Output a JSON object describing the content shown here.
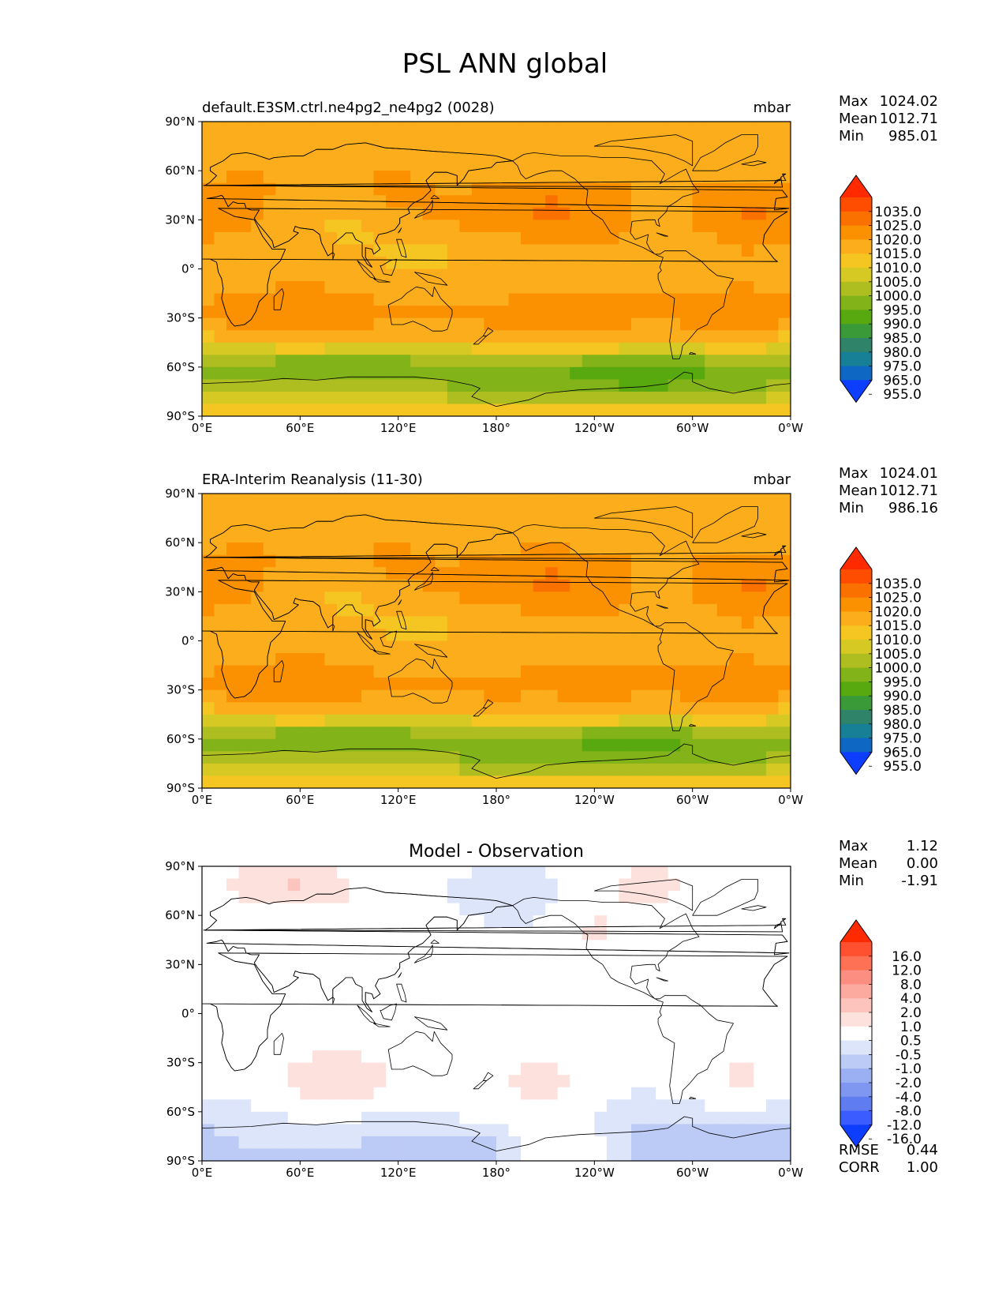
{
  "figure": {
    "title": "PSL ANN global"
  },
  "colors": {
    "land": "#000000",
    "frame": "#000000",
    "main_levels": [
      {
        "min": 1035,
        "color": "#ff2a00"
      },
      {
        "min": 1025,
        "color": "#ff4d00"
      },
      {
        "min": 1020,
        "color": "#fb7100"
      },
      {
        "min": 1015,
        "color": "#fb9000"
      },
      {
        "min": 1010,
        "color": "#fbad1c"
      },
      {
        "min": 1005,
        "color": "#f5c622"
      },
      {
        "min": 1000,
        "color": "#d7c924"
      },
      {
        "min": 995,
        "color": "#aebe20"
      },
      {
        "min": 990,
        "color": "#82b318"
      },
      {
        "min": 985,
        "color": "#58a80f"
      },
      {
        "min": 980,
        "color": "#3a9a37"
      },
      {
        "min": 975,
        "color": "#2e8368"
      },
      {
        "min": 965,
        "color": "#177f96"
      },
      {
        "min": 955,
        "color": "#0f67c4"
      },
      {
        "min": -9999,
        "color": "#0d3dff"
      }
    ],
    "diff_levels": [
      {
        "min": 16,
        "color": "#ff2a00"
      },
      {
        "min": 12,
        "color": "#ff5030"
      },
      {
        "min": 8,
        "color": "#ff7155"
      },
      {
        "min": 4,
        "color": "#fb8e80"
      },
      {
        "min": 2,
        "color": "#fcaaa0"
      },
      {
        "min": 1,
        "color": "#fcc4bc"
      },
      {
        "min": 0.5,
        "color": "#fde1dc"
      },
      {
        "min": -0.5,
        "color": "#ffffff"
      },
      {
        "min": -1,
        "color": "#dde5fa"
      },
      {
        "min": -2,
        "color": "#bccbf5"
      },
      {
        "min": -4,
        "color": "#9ab0f2"
      },
      {
        "min": -8,
        "color": "#7f97f0"
      },
      {
        "min": -12,
        "color": "#5f7cf0"
      },
      {
        "min": -16,
        "color": "#3b5cff"
      },
      {
        "min": -9999,
        "color": "#0d3dff"
      }
    ]
  },
  "chart_data": [
    {
      "type": "heatmap",
      "title_left": "default.E3SM.ctrl.ne4pg2_ne4pg2 (0028)",
      "title_right": "mbar",
      "units": "mbar",
      "x_ticks": [
        "0°E",
        "60°E",
        "120°E",
        "180°",
        "120°W",
        "60°W",
        "0°W"
      ],
      "y_ticks": [
        "90°N",
        "60°N",
        "30°N",
        "0°",
        "30°S",
        "60°S",
        "90°S"
      ],
      "xlim": [
        0,
        360
      ],
      "ylim": [
        -90,
        90
      ],
      "stats": [
        {
          "label": "Max",
          "value": "1024.02"
        },
        {
          "label": "Mean",
          "value": "1012.71"
        },
        {
          "label": "Min",
          "value": "985.01"
        }
      ],
      "colorbar_labels": [
        "1035.0",
        "1025.0",
        "1020.0",
        "1015.0",
        "1010.0",
        "1005.0",
        "1000.0",
        "995.0",
        "990.0",
        "985.0",
        "980.0",
        "975.0",
        "965.0",
        "955.0"
      ],
      "field": {
        "lons": [
          0,
          30,
          60,
          90,
          120,
          150,
          180,
          210,
          240,
          270,
          300,
          330,
          360
        ],
        "lats": [
          90,
          75,
          60,
          45,
          30,
          15,
          0,
          -15,
          -30,
          -45,
          -60,
          -75,
          -90
        ],
        "values": [
          [
            1013,
            1013,
            1013,
            1013,
            1013,
            1013,
            1013,
            1013,
            1013,
            1013,
            1013,
            1013,
            1013
          ],
          [
            1011,
            1012,
            1014,
            1014,
            1013,
            1013,
            1013,
            1013,
            1013,
            1013,
            1013,
            1009,
            1011
          ],
          [
            1014,
            1015,
            1013,
            1015,
            1015,
            1014,
            1013,
            1013,
            1014,
            1014,
            1014,
            1012,
            1014
          ],
          [
            1017,
            1016,
            1014,
            1014,
            1016,
            1015,
            1016,
            1020,
            1018,
            1014,
            1015,
            1019,
            1017
          ],
          [
            1020,
            1016,
            1010,
            1009,
            1014,
            1016,
            1018,
            1021,
            1020,
            1014,
            1015,
            1021,
            1020
          ],
          [
            1014,
            1012,
            1012,
            1010,
            1009,
            1010,
            1013,
            1014,
            1015,
            1013,
            1013,
            1016,
            1014
          ],
          [
            1012,
            1011,
            1012,
            1012,
            1010,
            1010,
            1012,
            1012,
            1012,
            1012,
            1012,
            1013,
            1012
          ],
          [
            1014,
            1015,
            1017,
            1015,
            1014,
            1013,
            1014,
            1015,
            1016,
            1015,
            1015,
            1016,
            1014
          ],
          [
            1017,
            1018,
            1020,
            1018,
            1016,
            1016,
            1017,
            1017,
            1019,
            1016,
            1017,
            1020,
            1017
          ],
          [
            1007,
            1009,
            1011,
            1010,
            1009,
            1009,
            1010,
            1011,
            1011,
            1010,
            1010,
            1011,
            1007
          ],
          [
            994,
            991,
            989,
            988,
            990,
            991,
            993,
            991,
            989,
            988,
            989,
            992,
            994
          ],
          [
            998,
            999,
            1000,
            1000,
            999,
            996,
            992,
            990,
            991,
            990,
            991,
            994,
            998
          ],
          [
            1013,
            1013,
            1013,
            1013,
            1013,
            1013,
            1013,
            1013,
            1013,
            1013,
            1013,
            1013,
            1013
          ]
        ]
      }
    },
    {
      "type": "heatmap",
      "title_left": "ERA-Interim Reanalysis (11-30)",
      "title_right": "mbar",
      "units": "mbar",
      "x_ticks": [
        "0°E",
        "60°E",
        "120°E",
        "180°",
        "120°W",
        "60°W",
        "0°W"
      ],
      "y_ticks": [
        "90°N",
        "60°N",
        "30°N",
        "0°",
        "30°S",
        "60°S",
        "90°S"
      ],
      "xlim": [
        0,
        360
      ],
      "ylim": [
        -90,
        90
      ],
      "stats": [
        {
          "label": "Max",
          "value": "1024.01"
        },
        {
          "label": "Mean",
          "value": "1012.71"
        },
        {
          "label": "Min",
          "value": "986.16"
        }
      ],
      "colorbar_labels": [
        "1035.0",
        "1025.0",
        "1020.0",
        "1015.0",
        "1010.0",
        "1005.0",
        "1000.0",
        "995.0",
        "990.0",
        "985.0",
        "980.0",
        "975.0",
        "965.0",
        "955.0"
      ],
      "field": {
        "lons": [
          0,
          30,
          60,
          90,
          120,
          150,
          180,
          210,
          240,
          270,
          300,
          330,
          360
        ],
        "lats": [
          90,
          75,
          60,
          45,
          30,
          15,
          0,
          -15,
          -30,
          -45,
          -60,
          -75,
          -90
        ],
        "values": [
          [
            1013,
            1013,
            1013,
            1013,
            1013,
            1013,
            1013,
            1013,
            1013,
            1013,
            1013,
            1013,
            1013
          ],
          [
            1011,
            1012,
            1013,
            1014,
            1013,
            1013,
            1014,
            1014,
            1013,
            1013,
            1012,
            1009,
            1011
          ],
          [
            1014,
            1015,
            1013,
            1015,
            1015,
            1014,
            1014,
            1014,
            1013,
            1014,
            1014,
            1012,
            1014
          ],
          [
            1017,
            1016,
            1014,
            1014,
            1016,
            1015,
            1016,
            1020,
            1018,
            1014,
            1015,
            1019,
            1017
          ],
          [
            1020,
            1016,
            1010,
            1009,
            1014,
            1016,
            1018,
            1021,
            1020,
            1014,
            1015,
            1021,
            1020
          ],
          [
            1014,
            1012,
            1012,
            1010,
            1009,
            1010,
            1013,
            1014,
            1015,
            1013,
            1013,
            1016,
            1014
          ],
          [
            1012,
            1011,
            1012,
            1012,
            1010,
            1010,
            1012,
            1012,
            1012,
            1012,
            1012,
            1013,
            1012
          ],
          [
            1014,
            1015,
            1017,
            1015,
            1014,
            1013,
            1014,
            1015,
            1016,
            1015,
            1015,
            1016,
            1014
          ],
          [
            1017,
            1018,
            1019,
            1017,
            1016,
            1016,
            1017,
            1016,
            1018,
            1016,
            1017,
            1019,
            1017
          ],
          [
            1007,
            1009,
            1011,
            1010,
            1009,
            1009,
            1010,
            1011,
            1011,
            1010,
            1010,
            1011,
            1007
          ],
          [
            994,
            991,
            989,
            988,
            990,
            991,
            993,
            991,
            989,
            988,
            990,
            992,
            994
          ],
          [
            998,
            999,
            1000,
            1000,
            999,
            997,
            993,
            991,
            992,
            991,
            992,
            994,
            998
          ],
          [
            1013,
            1013,
            1013,
            1013,
            1013,
            1013,
            1013,
            1013,
            1013,
            1013,
            1013,
            1013,
            1013
          ]
        ]
      }
    },
    {
      "type": "heatmap",
      "title_center": "Model - Observation",
      "x_ticks": [
        "0°E",
        "60°E",
        "120°E",
        "180°",
        "120°W",
        "60°W",
        "0°W"
      ],
      "y_ticks": [
        "90°N",
        "60°N",
        "30°N",
        "0°",
        "30°S",
        "60°S",
        "90°S"
      ],
      "xlim": [
        0,
        360
      ],
      "ylim": [
        -90,
        90
      ],
      "stats": [
        {
          "label": "Max",
          "value": "1.12"
        },
        {
          "label": "Mean",
          "value": "0.00"
        },
        {
          "label": "Min",
          "value": "-1.91"
        }
      ],
      "colorbar_labels": [
        "16.0",
        "12.0",
        "8.0",
        "4.0",
        "2.0",
        "1.0",
        "0.5",
        "-0.5",
        "-1.0",
        "-2.0",
        "-4.0",
        "-8.0",
        "-12.0",
        "-16.0"
      ],
      "skill": [
        {
          "label": "RMSE",
          "value": "0.44"
        },
        {
          "label": "CORR",
          "value": "1.00"
        }
      ],
      "field": {
        "lons": [
          0,
          30,
          60,
          90,
          120,
          150,
          180,
          210,
          240,
          270,
          300,
          330,
          360
        ],
        "lats": [
          90,
          75,
          60,
          45,
          30,
          15,
          0,
          -15,
          -30,
          -45,
          -60,
          -75,
          -90
        ],
        "values": [
          [
            0.0,
            0.7,
            0.9,
            0.3,
            0.0,
            -0.3,
            -0.6,
            -0.5,
            0.0,
            0.6,
            0.2,
            0.0,
            0.0
          ],
          [
            0.2,
            0.8,
            1.1,
            0.6,
            0.0,
            -0.6,
            -0.8,
            -0.7,
            0.2,
            1.0,
            0.4,
            0.0,
            0.2
          ],
          [
            0.0,
            0.2,
            0.3,
            0.1,
            0.0,
            -0.3,
            -0.8,
            -0.6,
            0.6,
            0.1,
            -0.2,
            -0.2,
            0.0
          ],
          [
            0.0,
            0.0,
            0.0,
            0.0,
            0.0,
            0.0,
            -0.1,
            0.0,
            0.6,
            0.0,
            -0.3,
            -0.2,
            0.0
          ],
          [
            0.3,
            0.0,
            0.0,
            0.0,
            0.0,
            -0.5,
            0.0,
            0.0,
            0.0,
            0.0,
            0.0,
            0.0,
            0.3
          ],
          [
            0.6,
            0.0,
            0.0,
            0.0,
            0.0,
            0.0,
            0.0,
            0.0,
            0.0,
            0.0,
            0.0,
            0.0,
            0.6
          ],
          [
            0.0,
            0.0,
            0.0,
            0.0,
            0.0,
            0.0,
            0.0,
            0.0,
            0.0,
            0.0,
            0.0,
            0.0,
            0.0
          ],
          [
            0.0,
            0.0,
            0.0,
            0.0,
            0.0,
            0.0,
            0.0,
            0.0,
            0.0,
            0.0,
            0.0,
            0.0,
            0.0
          ],
          [
            0.0,
            0.0,
            0.6,
            0.8,
            0.3,
            0.0,
            0.2,
            0.6,
            0.0,
            0.0,
            0.0,
            0.7,
            0.0
          ],
          [
            -0.3,
            0.0,
            0.8,
            1.1,
            0.4,
            0.0,
            0.3,
            1.0,
            0.0,
            -0.6,
            0.0,
            0.8,
            -0.3
          ],
          [
            -0.8,
            -0.7,
            -0.2,
            -0.3,
            -0.6,
            -0.4,
            0.0,
            0.0,
            -0.5,
            -0.9,
            -0.8,
            -0.7,
            -0.8
          ],
          [
            -1.2,
            -0.8,
            -0.9,
            -0.9,
            -1.1,
            -1.1,
            -1.0,
            0.0,
            -0.4,
            -1.3,
            -1.1,
            -1.2,
            -1.2
          ],
          [
            -1.3,
            -1.1,
            -1.1,
            -1.1,
            -1.3,
            -1.3,
            -1.1,
            -0.2,
            -0.3,
            -1.4,
            -1.4,
            -1.4,
            -1.3
          ]
        ]
      }
    }
  ]
}
